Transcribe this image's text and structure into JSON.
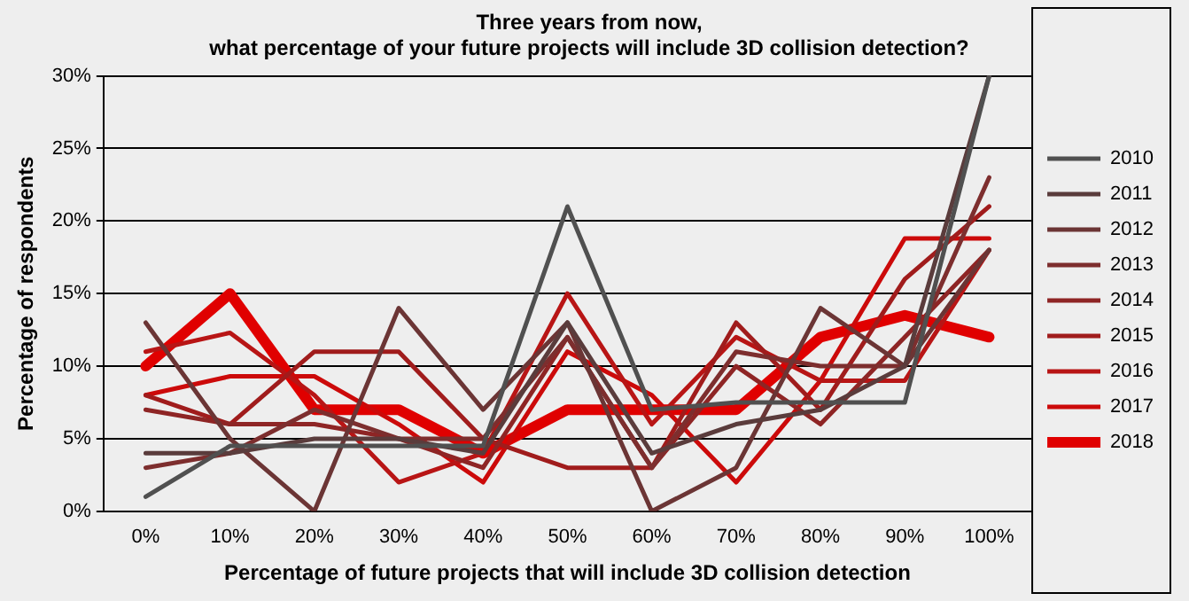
{
  "chart_data": {
    "type": "line",
    "title": "Three years from now,\nwhat percentage of your future projects will include 3D collision detection?",
    "xlabel": "Percentage of future projects that will include 3D collision detection",
    "ylabel": "Percentage of respondents",
    "categories": [
      "0%",
      "10%",
      "20%",
      "30%",
      "40%",
      "50%",
      "60%",
      "70%",
      "80%",
      "90%",
      "100%"
    ],
    "series": [
      {
        "name": "2010",
        "color": "#505050",
        "values": [
          1,
          4.5,
          4.5,
          4.5,
          4.5,
          21,
          7,
          7.5,
          7.5,
          7.5,
          30
        ]
      },
      {
        "name": "2011",
        "color": "#5a3c3c",
        "values": [
          4,
          4,
          5,
          5,
          4,
          13,
          4,
          6,
          7,
          10,
          30
        ]
      },
      {
        "name": "2012",
        "color": "#6b3535",
        "values": [
          13,
          5,
          0,
          14,
          7,
          13,
          0,
          3,
          14,
          10,
          18
        ]
      },
      {
        "name": "2013",
        "color": "#7d2e2e",
        "values": [
          3,
          4,
          7,
          5,
          5,
          12,
          3,
          11,
          10,
          10,
          23
        ]
      },
      {
        "name": "2014",
        "color": "#8e2525",
        "values": [
          7,
          6,
          6,
          5,
          3,
          12,
          3,
          10,
          6,
          12,
          18
        ]
      },
      {
        "name": "2015",
        "color": "#a01c1c",
        "values": [
          8,
          6,
          11,
          11,
          5,
          3,
          3,
          13,
          7,
          16,
          21
        ]
      },
      {
        "name": "2016",
        "color": "#b81515",
        "values": [
          11,
          12.3,
          8,
          2,
          4,
          15,
          6,
          12,
          9,
          9,
          18
        ]
      },
      {
        "name": "2017",
        "color": "#cc0a0a",
        "values": [
          8,
          9.3,
          9.3,
          6,
          2,
          11,
          8,
          2,
          9,
          18.8,
          18.8
        ]
      },
      {
        "name": "2018",
        "color": "#e00000",
        "values": [
          10,
          15,
          7,
          7,
          4,
          7,
          7,
          7,
          12,
          13.5,
          12
        ]
      }
    ],
    "ylim": [
      0,
      30
    ],
    "yticks": [
      {
        "value": 0,
        "label": "0%"
      },
      {
        "value": 5,
        "label": "5%"
      },
      {
        "value": 10,
        "label": "10%"
      },
      {
        "value": 15,
        "label": "15%"
      },
      {
        "value": 20,
        "label": "20%"
      },
      {
        "value": 25,
        "label": "25%"
      },
      {
        "value": 30,
        "label": "30%"
      }
    ],
    "grid": "y",
    "legend": "right",
    "marker": "none",
    "line_style": "solid"
  }
}
